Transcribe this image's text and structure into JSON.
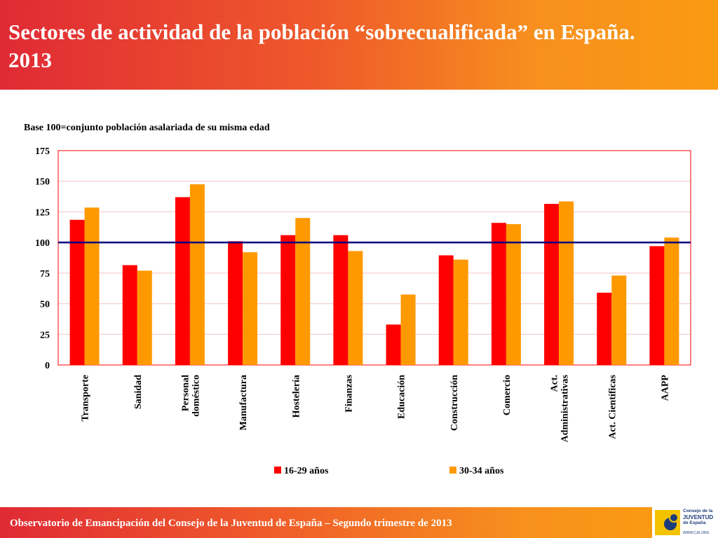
{
  "header": {
    "title": "Sectores de actividad de la población “sobrecualificada” en España. 2013"
  },
  "footer": {
    "text": "Observatorio de Emancipación del Consejo de la Juventud de España – Segundo trimestre de 2013"
  },
  "logo": {
    "line1": "Consejo de la",
    "line2": "JUVENTUD",
    "line3": "de España",
    "url": "WWW.CJE.ORG"
  },
  "chart_data": {
    "type": "bar",
    "subtitle": "Base 100=conjunto población asalariada de su misma edad",
    "categories": [
      [
        "Transporte"
      ],
      [
        "Sanidad"
      ],
      [
        "Personal",
        "doméstico"
      ],
      [
        "Manufactura"
      ],
      [
        "Hostelería"
      ],
      [
        "Finanzas"
      ],
      [
        "Educación"
      ],
      [
        "Construcción"
      ],
      [
        "Comercio"
      ],
      [
        "Act.",
        "Administrativas"
      ],
      [
        "Act. Científicas"
      ],
      [
        "AAPP"
      ]
    ],
    "series": [
      {
        "name": "16-29 años",
        "color": "#ff0000",
        "values": [
          118.5,
          81.5,
          137,
          101,
          106,
          106,
          33,
          89.5,
          116,
          131.5,
          59,
          97
        ]
      },
      {
        "name": "30-34 años",
        "color": "#ff9900",
        "values": [
          128.5,
          77,
          147.5,
          92,
          120,
          93,
          57.5,
          86,
          115,
          133.5,
          73,
          104
        ]
      }
    ],
    "ylim": [
      0,
      175
    ],
    "yticks": [
      0,
      25,
      50,
      75,
      100,
      125,
      150,
      175
    ],
    "reference_line": 100,
    "reference_color": "#000080",
    "grid": true,
    "legend_position": "bottom"
  }
}
